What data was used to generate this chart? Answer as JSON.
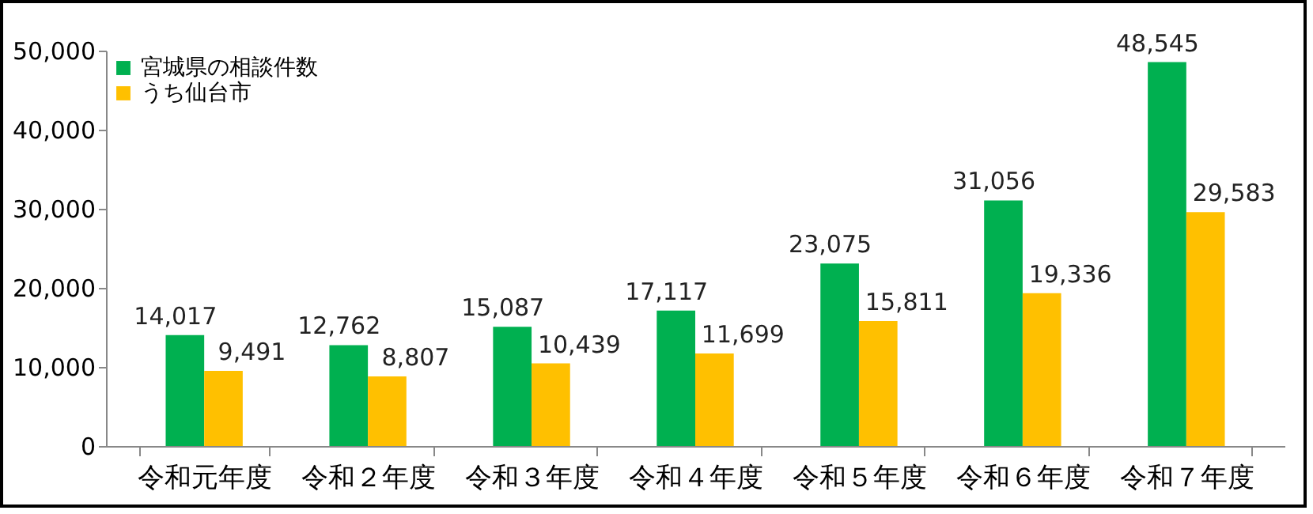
{
  "chart_data": {
    "type": "bar",
    "categories": [
      "令和元年度",
      "令和２年度",
      "令和３年度",
      "令和４年度",
      "令和５年度",
      "令和６年度",
      "令和７年度"
    ],
    "series": [
      {
        "name": "宮城県の相談件数",
        "color": "#00b050",
        "values": [
          14017,
          12762,
          15087,
          17117,
          23075,
          31056,
          48545
        ],
        "value_labels": [
          "14,017",
          "12,762",
          "15,087",
          "17,117",
          "23,075",
          "31,056",
          "48,545"
        ]
      },
      {
        "name": "うち仙台市",
        "color": "#ffc000",
        "values": [
          9491,
          8807,
          10439,
          11699,
          15811,
          19336,
          29583
        ],
        "value_labels": [
          "9,491",
          "8,807",
          "10,439",
          "11,699",
          "15,811",
          "19,336",
          "29,583"
        ]
      }
    ],
    "ylim": [
      0,
      50000
    ],
    "yticks": [
      {
        "value": 0,
        "label": "0"
      },
      {
        "value": 10000,
        "label": "10,000"
      },
      {
        "value": 20000,
        "label": "20,000"
      },
      {
        "value": 30000,
        "label": "30,000"
      },
      {
        "value": 40000,
        "label": "40,000"
      },
      {
        "value": 50000,
        "label": "50,000"
      }
    ],
    "grid": false,
    "legend": "top left"
  }
}
